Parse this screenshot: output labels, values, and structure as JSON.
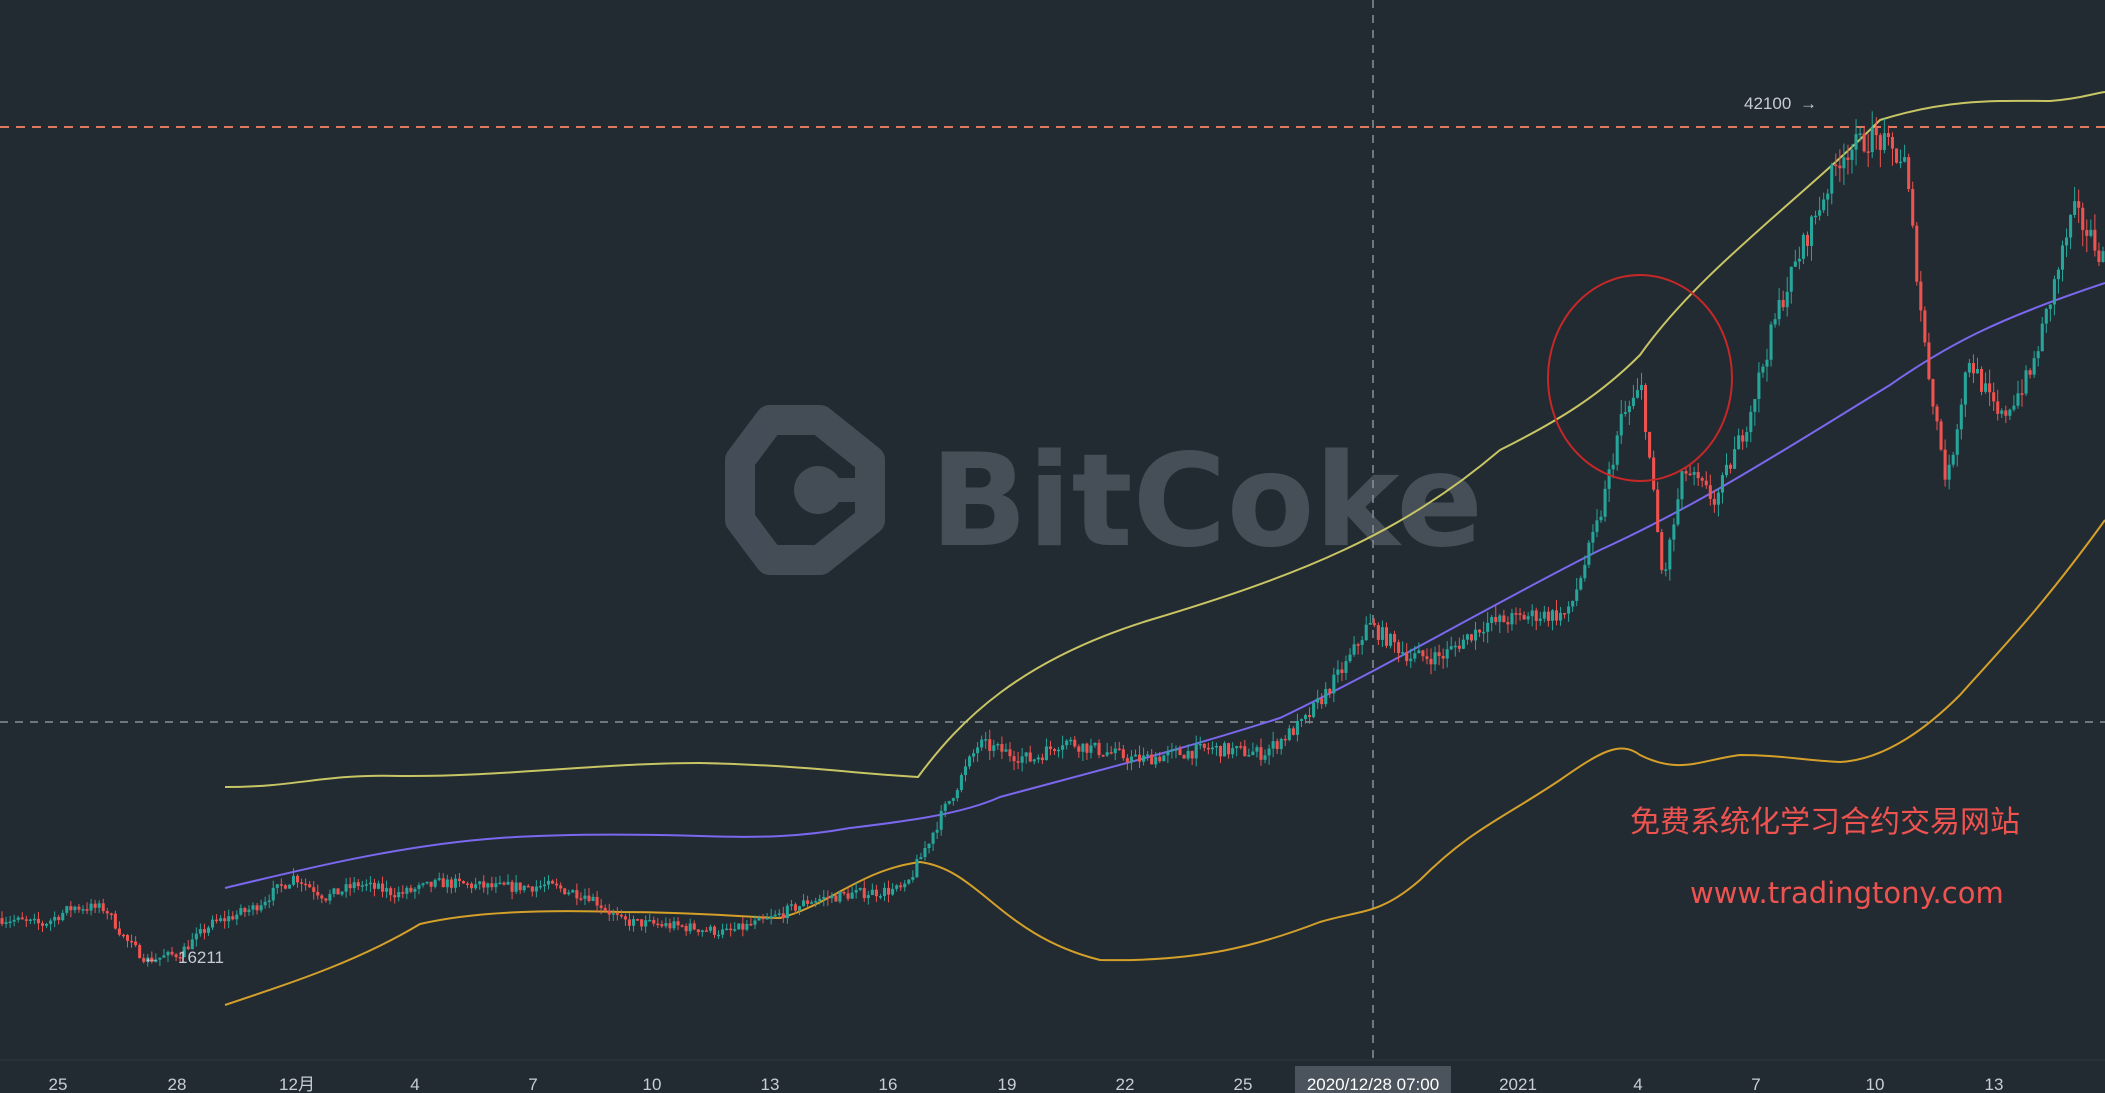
{
  "chart_data": {
    "type": "candlestick",
    "watermark": "BitCoke",
    "x_tick_labels": [
      "25",
      "28",
      "12月",
      "4",
      "7",
      "10",
      "13",
      "16",
      "19",
      "22",
      "25",
      "2020/12/28 07:00",
      "2021",
      "4",
      "7",
      "10",
      "13"
    ],
    "crosshair_time": "2020/12/28 07:00",
    "annotations": {
      "high": "42100",
      "low": "16211"
    },
    "promo": {
      "line1": "免费系统化学习合约交易网站",
      "line2": "www.tradingtony.com"
    },
    "price_path": [
      [
        0,
        17600
      ],
      [
        0.02,
        17400
      ],
      [
        0.035,
        17950
      ],
      [
        0.05,
        17900
      ],
      [
        0.06,
        16900
      ],
      [
        0.07,
        16300
      ],
      [
        0.085,
        16500
      ],
      [
        0.1,
        17400
      ],
      [
        0.12,
        17900
      ],
      [
        0.14,
        18900
      ],
      [
        0.155,
        18250
      ],
      [
        0.17,
        18650
      ],
      [
        0.19,
        18350
      ],
      [
        0.21,
        18700
      ],
      [
        0.235,
        18550
      ],
      [
        0.26,
        18600
      ],
      [
        0.28,
        18300
      ],
      [
        0.295,
        17500
      ],
      [
        0.33,
        17300
      ],
      [
        0.345,
        17150
      ],
      [
        0.365,
        17550
      ],
      [
        0.385,
        18150
      ],
      [
        0.405,
        18350
      ],
      [
        0.43,
        18500
      ],
      [
        0.445,
        20500
      ],
      [
        0.465,
        23000
      ],
      [
        0.49,
        22500
      ],
      [
        0.505,
        23100
      ],
      [
        0.525,
        22750
      ],
      [
        0.54,
        22500
      ],
      [
        0.56,
        22700
      ],
      [
        0.575,
        22850
      ],
      [
        0.6,
        22700
      ],
      [
        0.62,
        23700
      ],
      [
        0.64,
        25500
      ],
      [
        0.65,
        26700
      ],
      [
        0.67,
        25700
      ],
      [
        0.685,
        25700
      ],
      [
        0.705,
        26700
      ],
      [
        0.73,
        27000
      ],
      [
        0.745,
        27000
      ],
      [
        0.76,
        30000
      ],
      [
        0.77,
        33000
      ],
      [
        0.78,
        34000
      ],
      [
        0.79,
        28000
      ],
      [
        0.8,
        31500
      ],
      [
        0.815,
        30500
      ],
      [
        0.83,
        33000
      ],
      [
        0.845,
        36500
      ],
      [
        0.86,
        39000
      ],
      [
        0.875,
        41300
      ],
      [
        0.89,
        41800
      ],
      [
        0.905,
        41000
      ],
      [
        0.915,
        35000
      ],
      [
        0.925,
        31000
      ],
      [
        0.935,
        35000
      ],
      [
        0.95,
        33000
      ],
      [
        0.965,
        34500
      ],
      [
        0.975,
        37000
      ],
      [
        0.985,
        39500
      ],
      [
        1.0,
        38000
      ]
    ],
    "indicators": {
      "upper_band": "#c8c564",
      "moving_average": "#7b68ee",
      "lower_band": "#d4a02a"
    },
    "colors": {
      "background": "#222a32",
      "up_candle": "#26a69a",
      "down_candle": "#ef5350",
      "high_line": "#e07a5f",
      "crosshair": "#8a9099",
      "circle": "#c62828"
    }
  }
}
